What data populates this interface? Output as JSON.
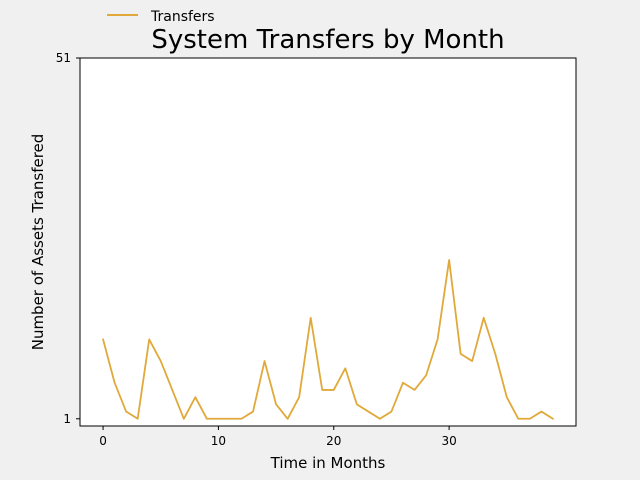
{
  "chart_data": {
    "type": "line",
    "title": "System Transfers by Month",
    "xlabel": "Time in Months",
    "ylabel": "Number of Assets Transfered",
    "xlim": [
      -2,
      41
    ],
    "ylim": [
      0,
      51
    ],
    "xticks": [
      0,
      10,
      20,
      30
    ],
    "yticks": [
      1,
      51
    ],
    "grid": false,
    "legend_position": "top-left",
    "series": [
      {
        "name": "Transfers",
        "color": "#e0a93a",
        "x": [
          0,
          1,
          2,
          3,
          4,
          5,
          6,
          7,
          8,
          9,
          10,
          11,
          12,
          13,
          14,
          15,
          16,
          17,
          18,
          19,
          20,
          21,
          22,
          23,
          24,
          25,
          26,
          27,
          28,
          29,
          30,
          31,
          32,
          33,
          34,
          35,
          36,
          37,
          38,
          39
        ],
        "y": [
          12,
          6,
          2,
          1,
          12,
          9,
          5,
          1,
          4,
          1,
          1,
          1,
          1,
          2,
          9,
          3,
          1,
          4,
          15,
          5,
          5,
          8,
          3,
          2,
          1,
          2,
          6,
          5,
          7,
          12,
          23,
          10,
          9,
          15,
          10,
          4,
          1,
          1,
          2,
          1
        ]
      }
    ]
  }
}
